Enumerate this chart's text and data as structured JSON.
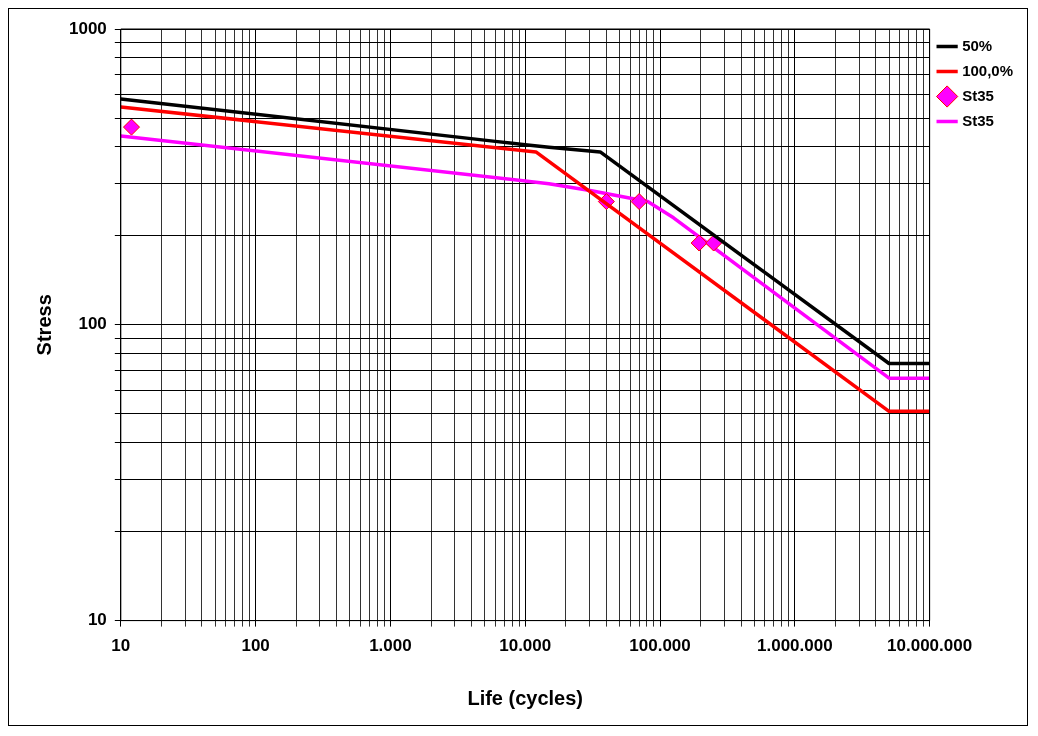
{
  "chart_data": {
    "type": "line",
    "xlabel": "Life (cycles)",
    "ylabel": "Stress",
    "log": "xy",
    "grid": true,
    "legend": "top right",
    "marker": "none",
    "line_style": "solid",
    "xlim": [
      10,
      10000000
    ],
    "ylim": [
      10,
      1000
    ],
    "xticks": [
      {
        "value": 10,
        "label": "10"
      },
      {
        "value": 100,
        "label": "100"
      },
      {
        "value": 1000,
        "label": "1.000"
      },
      {
        "value": 10000,
        "label": "10.000"
      },
      {
        "value": 100000,
        "label": "100.000"
      },
      {
        "value": 1000000,
        "label": "1.000.000"
      },
      {
        "value": 10000000,
        "label": "10.000.000"
      }
    ],
    "yticks": [
      10,
      100,
      1000
    ],
    "series": [
      {
        "name": "50%",
        "color": "#000000",
        "x": [
          10,
          6000,
          10000,
          15000,
          36000,
          5000000,
          10000000
        ],
        "values": [
          580,
          417,
          406,
          398,
          384,
          74,
          74
        ]
      },
      {
        "name": "100,0%",
        "color": "#ff0000",
        "x": [
          10,
          12000,
          5000000,
          10000000
        ],
        "values": [
          545,
          384,
          51,
          51
        ]
      },
      {
        "name": "St35",
        "type": "scatter",
        "marker": "diamond",
        "color": "#ff00ff",
        "x": [
          12,
          40000,
          70000,
          195000,
          250000
        ],
        "values": [
          466,
          261,
          261,
          189,
          189
        ]
      },
      {
        "name": "St35",
        "color": "#ff00ff",
        "x": [
          10,
          15000,
          31000,
          81000,
          126000,
          5000000,
          10000000
        ],
        "values": [
          435,
          300,
          284,
          261,
          230,
          66,
          66
        ]
      }
    ]
  }
}
